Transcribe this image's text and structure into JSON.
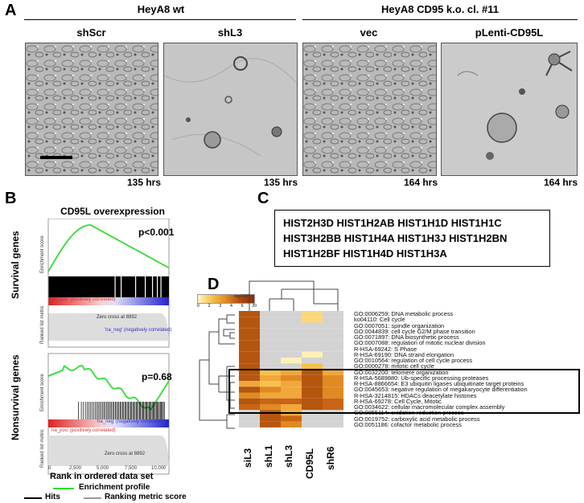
{
  "panels": {
    "A": "A",
    "B": "B",
    "C": "C",
    "D": "D"
  },
  "panelA": {
    "groups": [
      "HeyA8 wt",
      "HeyA8 CD95 k.o. cl. #11"
    ],
    "images": [
      {
        "label": "shScr",
        "hours": "135 hrs"
      },
      {
        "label": "shL3",
        "hours": "135 hrs"
      },
      {
        "label": "vec",
        "hours": "164 hrs"
      },
      {
        "label": "pLenti-CD95L",
        "hours": "164 hrs"
      }
    ]
  },
  "panelB": {
    "title": "CD95L overexpression",
    "row_labels": [
      "Survival genes",
      "Nonsurvival genes"
    ],
    "axis_es": "Enrichment score",
    "axis_rank": "Ranked list metric",
    "x_title": "Rank in ordered data set",
    "plot1": {
      "p_value": "p<0.001",
      "es_ticks": [
        "0.45",
        "0.40",
        "0.35",
        "0.30",
        "0.25",
        "0.20",
        "0.15",
        "0.10",
        "0.05",
        "0.00"
      ],
      "pos_text": "'na_pos' (positively correlated)",
      "neg_text": "'na_neg' (negatively correlated)",
      "zero_text": "Zero cross at 8892"
    },
    "plot2": {
      "p_value": "p=0.68",
      "es_ticks": [
        "0.075",
        "0.050",
        "0.025",
        "0.000",
        "-0.025",
        "-0.050",
        "-0.075",
        "-0.100",
        "-0.125",
        "-0.150",
        "-0.175"
      ],
      "pos_text": "'na_pos' (positively correlated)",
      "neg_text": "'na_neg' (negatively correlated)",
      "zero_text": "Zero cross at 8892",
      "metric_ticks": [
        "2.5",
        "0.0",
        "-2.5",
        "-5.0"
      ]
    },
    "x_ticks": [
      "0",
      "2,500",
      "5,000",
      "7,500",
      "10,000"
    ],
    "legend": {
      "enrichment": "Enrichment profile",
      "hits": "Hits",
      "ranking": "Ranking metric score"
    },
    "colors": {
      "enrichment": "#33dd33",
      "hits": "#000000",
      "ranking": "#999999"
    }
  },
  "panelC": {
    "lines": [
      "HIST2H3D HIST1H2AB HIST1H1D HIST1H1C",
      "HIST3H2BB HIST1H4A HIST1H3J HIST1H2BN",
      "HIST1H2BF HIST1H4D HIST1H3A"
    ]
  },
  "panelD": {
    "legend_title": "-log10(P)",
    "legend_ticks": [
      "0",
      "2",
      "3",
      "4",
      "6",
      "20"
    ],
    "columns": [
      "siL3",
      "shL1",
      "shL3",
      "CD95L",
      "shR6"
    ],
    "rows": [
      "GO:0006259: DNA metabolic process",
      "ko04110: Cell cycle",
      "GO:0007051: spindle organization",
      "GO:0044839: cell cycle G2/M phase transition",
      "GO:0071897: DNA biosynthetic process",
      "GO:0007088: regulation of mitotic nuclear division",
      "R-HSA-69242: S Phase",
      "R-HSA-69190: DNA strand elongation",
      "GO:0010564: regulation of cell cycle process",
      "GO:0000278: mitotic cell cycle",
      "GO:0032200: telomere organization",
      "R-HSA-5689880: Ub-specific processing proteases",
      "R-HSA-8866654: E3 ubiquitin ligases ubiquitinate target proteins",
      "GO:0045653: negative regulation of megakaryocyte differentiation",
      "R-HSA-3214815: HDACs deacetylate histones",
      "R-HSA-69278: Cell Cycle, Mitotic",
      "GO:0034622: cellular macromolecular complex assembly",
      "GO:0055114: oxidation-reduction process",
      "GO:0019752: carboxylic acid metabolic process",
      "GO:0051186: cofactor metabolic process"
    ],
    "values": [
      [
        20,
        0,
        0,
        3,
        0
      ],
      [
        20,
        0,
        0,
        3,
        0
      ],
      [
        20,
        0,
        0,
        0,
        0
      ],
      [
        20,
        0,
        0,
        0,
        0
      ],
      [
        20,
        0,
        0,
        0,
        0
      ],
      [
        20,
        0,
        0,
        0,
        0
      ],
      [
        20,
        0,
        0,
        0,
        0
      ],
      [
        20,
        0,
        0,
        2,
        0
      ],
      [
        20,
        0,
        2,
        0,
        0
      ],
      [
        20,
        0,
        0,
        4,
        0
      ],
      [
        20,
        4,
        5,
        20,
        6
      ],
      [
        20,
        6,
        8,
        20,
        8
      ],
      [
        6,
        4,
        6,
        20,
        7
      ],
      [
        20,
        7,
        6,
        20,
        8
      ],
      [
        8,
        5,
        6,
        20,
        7
      ],
      [
        20,
        9,
        10,
        20,
        10
      ],
      [
        9,
        7,
        6,
        20,
        9
      ],
      [
        0,
        20,
        6,
        0,
        0
      ],
      [
        0,
        20,
        9,
        0,
        0
      ],
      [
        0,
        20,
        8,
        0,
        0
      ]
    ],
    "highlight_rows": [
      10,
      16
    ],
    "na_color": "#d3d3d3"
  }
}
